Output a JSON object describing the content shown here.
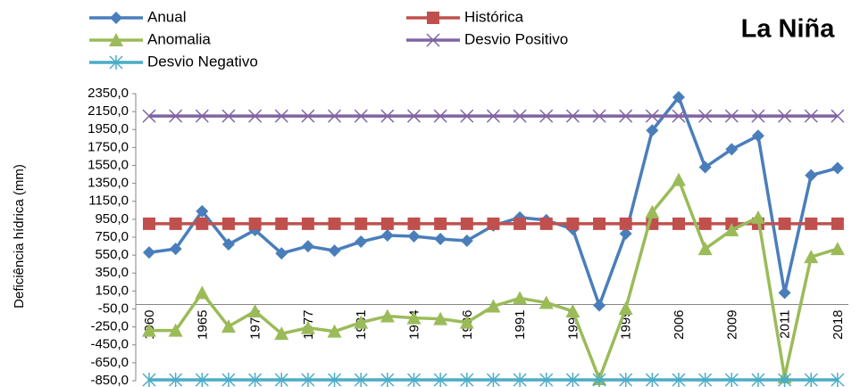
{
  "chart_data": {
    "type": "line",
    "title": "La Niña",
    "y_label": "Deficiência hídrica (mm)",
    "categories": [
      "1960",
      null,
      "1965",
      null,
      "1972",
      null,
      "1977",
      null,
      "1981",
      null,
      "1984",
      null,
      "1986",
      null,
      "1991",
      null,
      "1995",
      null,
      "1999",
      null,
      "2006",
      null,
      "2009",
      null,
      "2011",
      null,
      "2018"
    ],
    "ylim": [
      -850,
      2350
    ],
    "yticks": [
      {
        "value": -850,
        "label": "-850,0"
      },
      {
        "value": -650,
        "label": "-650,0"
      },
      {
        "value": -450,
        "label": "-450,0"
      },
      {
        "value": -250,
        "label": "-250,0"
      },
      {
        "value": -50,
        "label": "-50,0"
      },
      {
        "value": 150,
        "label": "150,0"
      },
      {
        "value": 350,
        "label": "350,0"
      },
      {
        "value": 550,
        "label": "550,0"
      },
      {
        "value": 750,
        "label": "750,0"
      },
      {
        "value": 950,
        "label": "950,0"
      },
      {
        "value": 1150,
        "label": "1150,0"
      },
      {
        "value": 1350,
        "label": "1350,0"
      },
      {
        "value": 1550,
        "label": "1550,0"
      },
      {
        "value": 1750,
        "label": "1750,0"
      },
      {
        "value": 1950,
        "label": "1950,0"
      },
      {
        "value": 2150,
        "label": "2150,0"
      },
      {
        "value": 2350,
        "label": "2350,0"
      }
    ],
    "grid": false,
    "series": [
      {
        "name": "Anual",
        "color": "#4a7ebb",
        "marker": "diamond",
        "values": [
          580,
          620,
          1040,
          670,
          830,
          570,
          650,
          600,
          700,
          770,
          760,
          730,
          710,
          880,
          970,
          940,
          840,
          -10,
          790,
          1940,
          2310,
          1530,
          1730,
          1880,
          130,
          1440,
          1520
        ]
      },
      {
        "name": "Histórica",
        "color": "#c0504d",
        "marker": "square",
        "values": [
          900,
          900,
          900,
          900,
          900,
          900,
          900,
          900,
          900,
          900,
          900,
          900,
          900,
          900,
          900,
          900,
          900,
          900,
          900,
          900,
          900,
          900,
          900,
          900,
          900,
          900,
          900
        ]
      },
      {
        "name": "Anomalia",
        "color": "#9bbb59",
        "marker": "triangle",
        "values": [
          -290,
          -290,
          130,
          -245,
          -75,
          -325,
          -260,
          -300,
          -200,
          -130,
          -150,
          -160,
          -200,
          -20,
          70,
          20,
          -75,
          -830,
          -45,
          1030,
          1390,
          620,
          830,
          970,
          -810,
          530,
          620
        ]
      },
      {
        "name": "Desvio Positivo",
        "color": "#8064a2",
        "marker": "x",
        "values": [
          2100,
          2100,
          2100,
          2100,
          2100,
          2100,
          2100,
          2100,
          2100,
          2100,
          2100,
          2100,
          2100,
          2100,
          2100,
          2100,
          2100,
          2100,
          2100,
          2100,
          2100,
          2100,
          2100,
          2100,
          2100,
          2100,
          2100
        ]
      },
      {
        "name": "Desvio Negativo",
        "color": "#4bacc6",
        "marker": "star",
        "values": [
          -840,
          -840,
          -840,
          -840,
          -840,
          -840,
          -840,
          -840,
          -840,
          -840,
          -840,
          -840,
          -840,
          -840,
          -840,
          -840,
          -840,
          -840,
          -840,
          -840,
          -840,
          -840,
          -840,
          -840,
          -840,
          -840,
          -840
        ]
      }
    ]
  }
}
